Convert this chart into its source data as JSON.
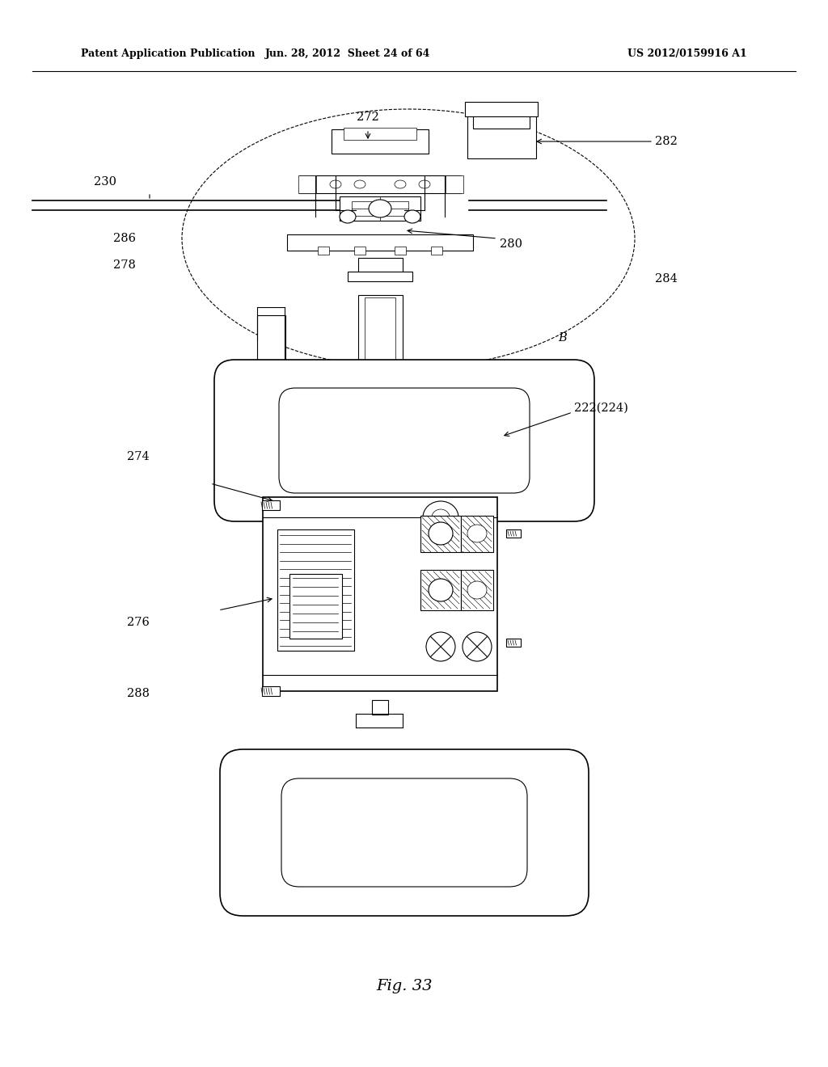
{
  "title": "Fig. 33",
  "header_left": "Patent Application Publication",
  "header_center": "Jun. 28, 2012  Sheet 24 of 64",
  "header_right": "US 2012/0159916 A1",
  "bg_color": "#ffffff"
}
